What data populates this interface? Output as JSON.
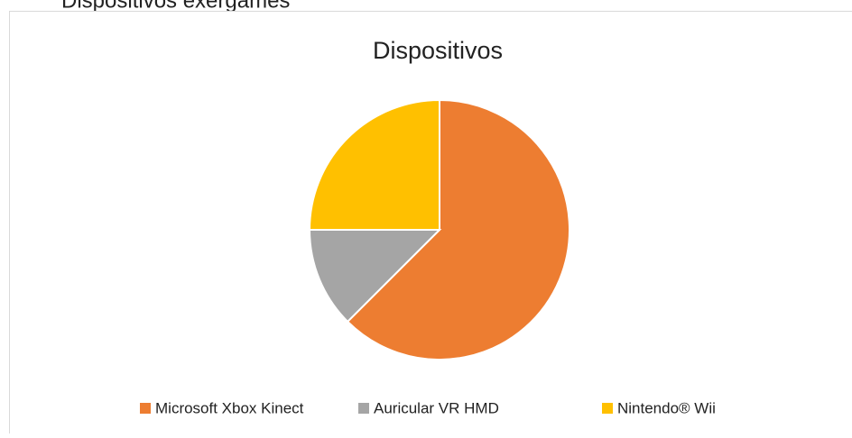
{
  "heading": "Dispositivos exergames",
  "chart_data": {
    "type": "pie",
    "title": "Dispositivos",
    "categories": [
      "Microsoft Xbox Kinect",
      "Auricular VR HMD",
      "Nintendo® Wii"
    ],
    "values": [
      62.5,
      12.5,
      25
    ],
    "colors": [
      "#ed7d31",
      "#a5a5a5",
      "#ffc000"
    ],
    "start_angle": 0,
    "direction": "clockwise",
    "legend": "bottom"
  }
}
